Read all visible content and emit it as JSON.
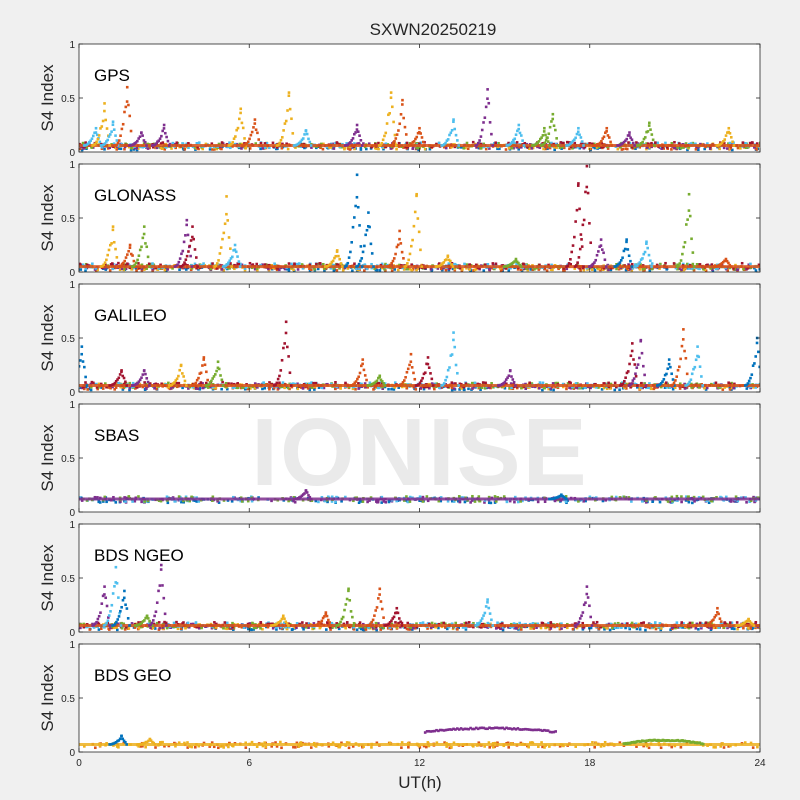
{
  "title": "SXWN20250219",
  "watermark": "IONISE",
  "colors": {
    "series": [
      "#0072BD",
      "#D95319",
      "#EDB120",
      "#7E2F8E",
      "#77AC30",
      "#4DBEEE",
      "#A2142F"
    ],
    "axes_bg": "#ffffff",
    "figure_bg": "#f0f0f0"
  },
  "chart_data": [
    {
      "type": "scatter",
      "title": "GPS",
      "ylabel": "S4 Index",
      "xlim": [
        0,
        24
      ],
      "ylim": [
        0,
        1
      ],
      "yticks": [
        0,
        0.5,
        1
      ],
      "series_colors": [
        "#0072BD",
        "#D95319",
        "#EDB120",
        "#7E2F8E",
        "#77AC30",
        "#4DBEEE",
        "#A2142F"
      ],
      "baseline": 0.06,
      "events": [
        {
          "x": 0.6,
          "y": 0.22,
          "color": "#4DBEEE"
        },
        {
          "x": 0.9,
          "y": 0.45,
          "color": "#EDB120"
        },
        {
          "x": 1.2,
          "y": 0.28,
          "color": "#4DBEEE"
        },
        {
          "x": 1.7,
          "y": 0.6,
          "color": "#D95319"
        },
        {
          "x": 2.2,
          "y": 0.18,
          "color": "#7E2F8E"
        },
        {
          "x": 3.0,
          "y": 0.25,
          "color": "#7E2F8E"
        },
        {
          "x": 5.7,
          "y": 0.4,
          "color": "#EDB120"
        },
        {
          "x": 6.2,
          "y": 0.3,
          "color": "#D95319"
        },
        {
          "x": 7.4,
          "y": 0.55,
          "color": "#EDB120"
        },
        {
          "x": 8.0,
          "y": 0.2,
          "color": "#4DBEEE"
        },
        {
          "x": 9.8,
          "y": 0.25,
          "color": "#7E2F8E"
        },
        {
          "x": 11.0,
          "y": 0.55,
          "color": "#EDB120"
        },
        {
          "x": 11.4,
          "y": 0.48,
          "color": "#D95319"
        },
        {
          "x": 12.0,
          "y": 0.22,
          "color": "#D95319"
        },
        {
          "x": 13.2,
          "y": 0.3,
          "color": "#4DBEEE"
        },
        {
          "x": 14.4,
          "y": 0.58,
          "color": "#7E2F8E"
        },
        {
          "x": 15.5,
          "y": 0.25,
          "color": "#4DBEEE"
        },
        {
          "x": 16.4,
          "y": 0.22,
          "color": "#77AC30"
        },
        {
          "x": 16.7,
          "y": 0.35,
          "color": "#77AC30"
        },
        {
          "x": 17.6,
          "y": 0.22,
          "color": "#4DBEEE"
        },
        {
          "x": 18.6,
          "y": 0.22,
          "color": "#D95319"
        },
        {
          "x": 19.4,
          "y": 0.18,
          "color": "#7E2F8E"
        },
        {
          "x": 20.1,
          "y": 0.27,
          "color": "#77AC30"
        },
        {
          "x": 22.9,
          "y": 0.22,
          "color": "#EDB120"
        }
      ]
    },
    {
      "type": "scatter",
      "title": "GLONASS",
      "ylabel": "S4 Index",
      "xlim": [
        0,
        24
      ],
      "ylim": [
        0,
        1
      ],
      "yticks": [
        0,
        0.5,
        1
      ],
      "series_colors": [
        "#0072BD",
        "#D95319",
        "#EDB120",
        "#7E2F8E",
        "#77AC30",
        "#4DBEEE",
        "#A2142F"
      ],
      "baseline": 0.05,
      "events": [
        {
          "x": 1.2,
          "y": 0.42,
          "color": "#EDB120"
        },
        {
          "x": 1.8,
          "y": 0.25,
          "color": "#D95319"
        },
        {
          "x": 2.3,
          "y": 0.42,
          "color": "#77AC30"
        },
        {
          "x": 3.8,
          "y": 0.48,
          "color": "#7E2F8E"
        },
        {
          "x": 4.0,
          "y": 0.42,
          "color": "#A2142F"
        },
        {
          "x": 5.2,
          "y": 0.7,
          "color": "#EDB120"
        },
        {
          "x": 5.5,
          "y": 0.25,
          "color": "#4DBEEE"
        },
        {
          "x": 9.1,
          "y": 0.2,
          "color": "#EDB120"
        },
        {
          "x": 9.8,
          "y": 0.9,
          "color": "#0072BD"
        },
        {
          "x": 10.2,
          "y": 0.55,
          "color": "#0072BD"
        },
        {
          "x": 11.3,
          "y": 0.38,
          "color": "#D95319"
        },
        {
          "x": 11.9,
          "y": 0.72,
          "color": "#EDB120"
        },
        {
          "x": 13.0,
          "y": 0.15,
          "color": "#EDB120"
        },
        {
          "x": 15.4,
          "y": 0.12,
          "color": "#77AC30"
        },
        {
          "x": 17.6,
          "y": 0.82,
          "color": "#A2142F"
        },
        {
          "x": 17.9,
          "y": 0.98,
          "color": "#A2142F"
        },
        {
          "x": 18.4,
          "y": 0.3,
          "color": "#7E2F8E"
        },
        {
          "x": 19.3,
          "y": 0.3,
          "color": "#0072BD"
        },
        {
          "x": 20.0,
          "y": 0.28,
          "color": "#4DBEEE"
        },
        {
          "x": 21.5,
          "y": 0.72,
          "color": "#77AC30"
        },
        {
          "x": 22.8,
          "y": 0.12,
          "color": "#D95319"
        }
      ]
    },
    {
      "type": "scatter",
      "title": "GALILEO",
      "ylabel": "S4 Index",
      "xlim": [
        0,
        24
      ],
      "ylim": [
        0,
        1
      ],
      "yticks": [
        0,
        0.5,
        1
      ],
      "series_colors": [
        "#0072BD",
        "#D95319",
        "#EDB120",
        "#7E2F8E",
        "#77AC30",
        "#4DBEEE",
        "#A2142F"
      ],
      "baseline": 0.06,
      "events": [
        {
          "x": 0.1,
          "y": 0.42,
          "color": "#0072BD"
        },
        {
          "x": 1.5,
          "y": 0.2,
          "color": "#A2142F"
        },
        {
          "x": 2.3,
          "y": 0.2,
          "color": "#7E2F8E"
        },
        {
          "x": 3.6,
          "y": 0.25,
          "color": "#EDB120"
        },
        {
          "x": 4.4,
          "y": 0.32,
          "color": "#D95319"
        },
        {
          "x": 4.9,
          "y": 0.28,
          "color": "#77AC30"
        },
        {
          "x": 7.3,
          "y": 0.65,
          "color": "#A2142F"
        },
        {
          "x": 10.0,
          "y": 0.3,
          "color": "#D95319"
        },
        {
          "x": 10.6,
          "y": 0.15,
          "color": "#77AC30"
        },
        {
          "x": 11.7,
          "y": 0.35,
          "color": "#D95319"
        },
        {
          "x": 12.3,
          "y": 0.32,
          "color": "#A2142F"
        },
        {
          "x": 13.2,
          "y": 0.55,
          "color": "#4DBEEE"
        },
        {
          "x": 15.2,
          "y": 0.2,
          "color": "#7E2F8E"
        },
        {
          "x": 19.5,
          "y": 0.45,
          "color": "#A2142F"
        },
        {
          "x": 19.8,
          "y": 0.48,
          "color": "#7E2F8E"
        },
        {
          "x": 20.8,
          "y": 0.3,
          "color": "#0072BD"
        },
        {
          "x": 21.3,
          "y": 0.58,
          "color": "#D95319"
        },
        {
          "x": 21.8,
          "y": 0.42,
          "color": "#4DBEEE"
        },
        {
          "x": 23.9,
          "y": 0.5,
          "color": "#0072BD"
        }
      ]
    },
    {
      "type": "scatter",
      "title": "SBAS",
      "ylabel": "S4 Index",
      "xlim": [
        0,
        24
      ],
      "ylim": [
        0,
        1
      ],
      "yticks": [
        0,
        0.5,
        1
      ],
      "series_colors": [
        "#0072BD",
        "#7E2F8E",
        "#4DBEEE",
        "#77AC30"
      ],
      "baseline": 0.12,
      "events": [
        {
          "x": 8.0,
          "y": 0.2,
          "color": "#7E2F8E"
        },
        {
          "x": 17.0,
          "y": 0.16,
          "color": "#0072BD"
        }
      ]
    },
    {
      "type": "scatter",
      "title": "BDS NGEO",
      "ylabel": "S4 Index",
      "xlim": [
        0,
        24
      ],
      "ylim": [
        0,
        1
      ],
      "yticks": [
        0,
        0.5,
        1
      ],
      "series_colors": [
        "#0072BD",
        "#D95319",
        "#EDB120",
        "#7E2F8E",
        "#77AC30",
        "#4DBEEE",
        "#A2142F"
      ],
      "baseline": 0.06,
      "events": [
        {
          "x": 0.9,
          "y": 0.42,
          "color": "#7E2F8E"
        },
        {
          "x": 1.3,
          "y": 0.6,
          "color": "#4DBEEE"
        },
        {
          "x": 1.6,
          "y": 0.38,
          "color": "#0072BD"
        },
        {
          "x": 2.4,
          "y": 0.15,
          "color": "#77AC30"
        },
        {
          "x": 2.9,
          "y": 0.62,
          "color": "#7E2F8E"
        },
        {
          "x": 7.2,
          "y": 0.15,
          "color": "#EDB120"
        },
        {
          "x": 8.7,
          "y": 0.18,
          "color": "#D95319"
        },
        {
          "x": 9.5,
          "y": 0.4,
          "color": "#77AC30"
        },
        {
          "x": 10.6,
          "y": 0.4,
          "color": "#D95319"
        },
        {
          "x": 11.2,
          "y": 0.22,
          "color": "#A2142F"
        },
        {
          "x": 14.4,
          "y": 0.3,
          "color": "#4DBEEE"
        },
        {
          "x": 17.9,
          "y": 0.42,
          "color": "#7E2F8E"
        },
        {
          "x": 22.5,
          "y": 0.22,
          "color": "#D95319"
        },
        {
          "x": 23.6,
          "y": 0.12,
          "color": "#EDB120"
        }
      ]
    },
    {
      "type": "scatter",
      "title": "BDS GEO",
      "ylabel": "S4 Index",
      "xlim": [
        0,
        24
      ],
      "ylim": [
        0,
        1
      ],
      "yticks": [
        0,
        0.5,
        1
      ],
      "series_colors": [
        "#D95319",
        "#EDB120"
      ],
      "baseline": 0.07,
      "events": [
        {
          "x": 1.5,
          "y": 0.15,
          "color": "#0072BD"
        },
        {
          "x": 2.5,
          "y": 0.12,
          "color": "#EDB120"
        }
      ],
      "arcs": [
        {
          "x0": 12.2,
          "x1": 16.8,
          "y": 0.22,
          "color": "#7E2F8E"
        },
        {
          "x0": 19.2,
          "x1": 22.0,
          "y": 0.11,
          "color": "#77AC30"
        }
      ]
    }
  ],
  "x_axis": {
    "label": "UT(h)",
    "ticks": [
      0,
      6,
      12,
      18,
      24
    ]
  }
}
